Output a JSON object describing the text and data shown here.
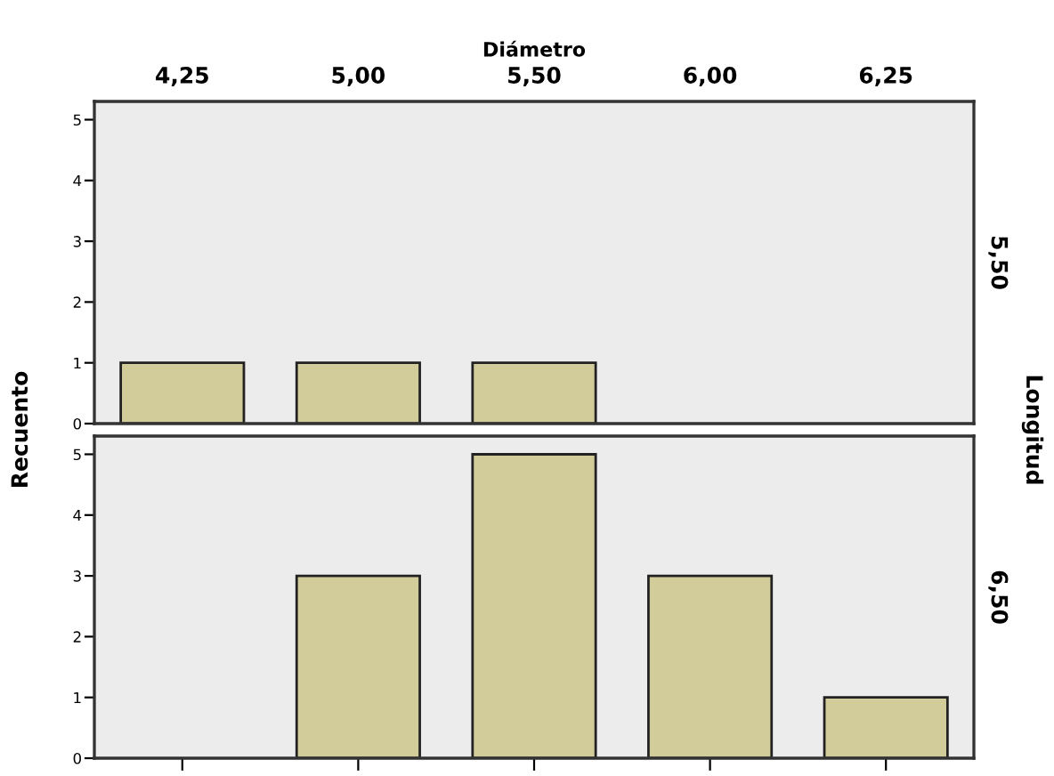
{
  "chart_data": [
    {
      "type": "bar",
      "xlabel": "Diámetro",
      "y2label": "5,50",
      "categories": [
        "4,25",
        "5,00",
        "5,50",
        "6,00",
        "6,25"
      ],
      "values": [
        1,
        1,
        1,
        0,
        0
      ],
      "color": "#d2cc9b",
      "ylim": [
        0,
        5.3
      ],
      "yticks": [
        0,
        1,
        2,
        3,
        4,
        5
      ],
      "grid": false,
      "annotations": [
        "Recuento",
        "Longitud"
      ]
    },
    {
      "type": "bar",
      "y2label": "6,50",
      "categories": [
        "4,25",
        "5,00",
        "5,50",
        "6,00",
        "6,25"
      ],
      "values": [
        0,
        3,
        5,
        3,
        1
      ],
      "color": "#d2cc9b",
      "ylim": [
        0,
        5.3
      ],
      "yticks": [
        0,
        1,
        2,
        3,
        4,
        5
      ],
      "tick_labels": "y",
      "grid": false
    }
  ]
}
